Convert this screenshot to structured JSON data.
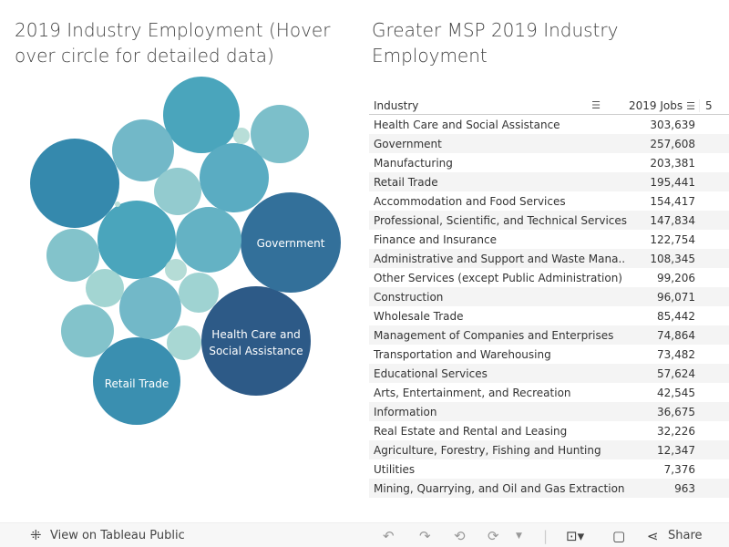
{
  "left_title": "2019 Industry Employment (Hover over circle for detailed data)",
  "right_title": "Greater MSP 2019 Industry Employment",
  "table": {
    "col_industry": "Industry",
    "col_jobs": "2019 Jobs",
    "col_next_partial": "5",
    "rows": [
      {
        "industry": "Health Care and Social Assistance",
        "jobs": "303,639"
      },
      {
        "industry": "Government",
        "jobs": "257,608"
      },
      {
        "industry": "Manufacturing",
        "jobs": "203,381"
      },
      {
        "industry": "Retail Trade",
        "jobs": "195,441"
      },
      {
        "industry": "Accommodation and Food Services",
        "jobs": "154,417"
      },
      {
        "industry": "Professional, Scientific, and Technical Services",
        "jobs": "147,834"
      },
      {
        "industry": "Finance and Insurance",
        "jobs": "122,754"
      },
      {
        "industry": "Administrative and Support and Waste Mana..",
        "jobs": "108,345"
      },
      {
        "industry": "Other Services (except Public Administration)",
        "jobs": "99,206"
      },
      {
        "industry": "Construction",
        "jobs": "96,071"
      },
      {
        "industry": "Wholesale Trade",
        "jobs": "85,442"
      },
      {
        "industry": "Management of Companies and Enterprises",
        "jobs": "74,864"
      },
      {
        "industry": "Transportation and Warehousing",
        "jobs": "73,482"
      },
      {
        "industry": "Educational Services",
        "jobs": "57,624"
      },
      {
        "industry": "Arts, Entertainment, and Recreation",
        "jobs": "42,545"
      },
      {
        "industry": "Information",
        "jobs": "36,675"
      },
      {
        "industry": "Real Estate and Rental and Leasing",
        "jobs": "32,226"
      },
      {
        "industry": "Agriculture, Forestry, Fishing and Hunting",
        "jobs": "12,347"
      },
      {
        "industry": "Utilities",
        "jobs": "7,376"
      },
      {
        "industry": "Mining, Quarrying, and Oil and Gas Extraction",
        "jobs": "963"
      }
    ]
  },
  "bubble_labels": {
    "health": [
      "Health Care and",
      "Social Assistance"
    ],
    "government": "Government",
    "retail": "Retail Trade"
  },
  "colors": {
    "dark": "#2d5a87",
    "light": "#b5dcd6"
  },
  "toolbar": {
    "view_label": "View on Tableau Public",
    "share_label": "Share"
  }
}
